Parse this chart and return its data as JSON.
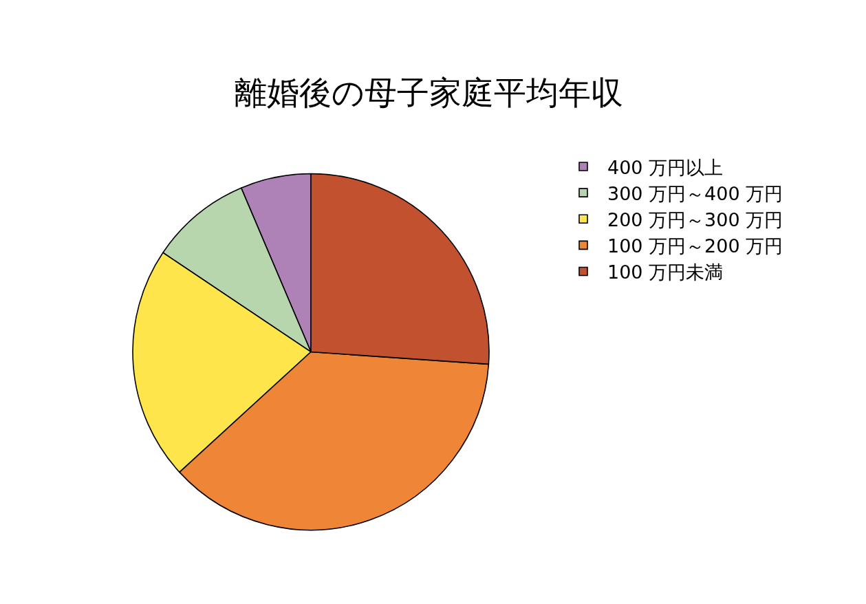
{
  "chart_data": {
    "type": "pie",
    "title": "離婚後の母子家庭平均年収",
    "categories": [
      "400 万円以上",
      "300 万円～400 万円",
      "200 万円～300 万円",
      "100 万円～200 万円",
      "100 万円未満"
    ],
    "values": [
      6.4,
      9.2,
      21.2,
      37.1,
      26.1
    ],
    "colors": [
      "#ae82b7",
      "#b7d6ae",
      "#fee54b",
      "#ef8536",
      "#c1512f"
    ],
    "legend": "right"
  }
}
